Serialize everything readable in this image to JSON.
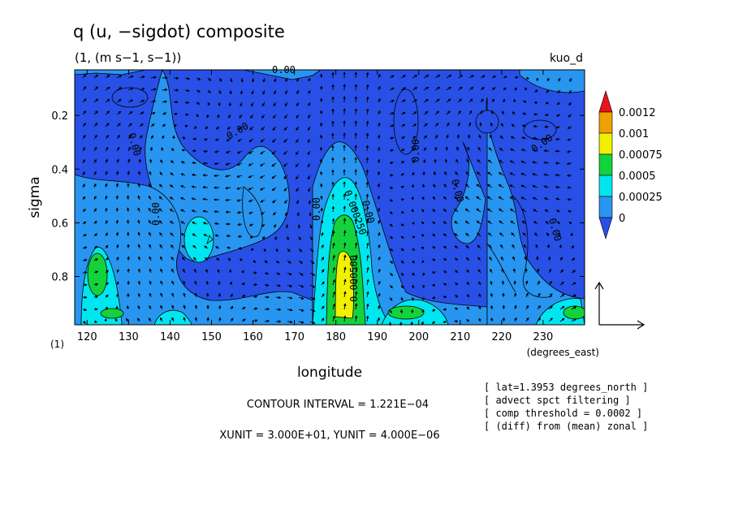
{
  "chart_data": {
    "type": "heatmap",
    "title": "q (u, −sigdot) composite",
    "subtitle": "(1, (m s−1, s−1))",
    "top_right_label": "kuo_d",
    "xlabel": "longitude",
    "ylabel": "sigma",
    "x_unit_label": "(degrees_east)",
    "y_unit_label": "(1)",
    "xlim": [
      117,
      240
    ],
    "ylim": [
      0.03,
      0.98
    ],
    "y_inverted": true,
    "x_ticks": [
      "120",
      "130",
      "140",
      "150",
      "160",
      "170",
      "180",
      "190",
      "200",
      "210",
      "220",
      "230"
    ],
    "x_tick_values": [
      120,
      130,
      140,
      150,
      160,
      170,
      180,
      190,
      200,
      210,
      220,
      230
    ],
    "y_ticks": [
      "0.2",
      "0.4",
      "0.6",
      "0.8"
    ],
    "y_tick_values": [
      0.2,
      0.4,
      0.6,
      0.8
    ],
    "colorbar": {
      "labels": [
        "0.0012",
        "0.001",
        "0.00075",
        "0.0005",
        "0.00025",
        "0"
      ],
      "colors": [
        "#e8141c",
        "#f0a000",
        "#f0f000",
        "#14d23c",
        "#00e6f0",
        "#2896f0",
        "#2850e6"
      ]
    },
    "contour_labels": [
      "0.00",
      "0.00",
      "0.00",
      "0.00",
      "0.00",
      "0.00",
      "0.00",
      "0.00",
      "0.00",
      "0.00",
      "0.000250",
      "0.000500"
    ],
    "contour_interval_text": "CONTOUR INTERVAL = 1.221E−04",
    "vector_unit_text": "XUNIT = 3.000E+01, YUNIT = 4.000E−06",
    "notes": [
      "[ lat=1.3953 degrees_north ]",
      "[ advect spct filtering ]",
      "[ comp threshold = 0.0002 ]",
      "[ (diff) from (mean) zonal ]"
    ]
  }
}
